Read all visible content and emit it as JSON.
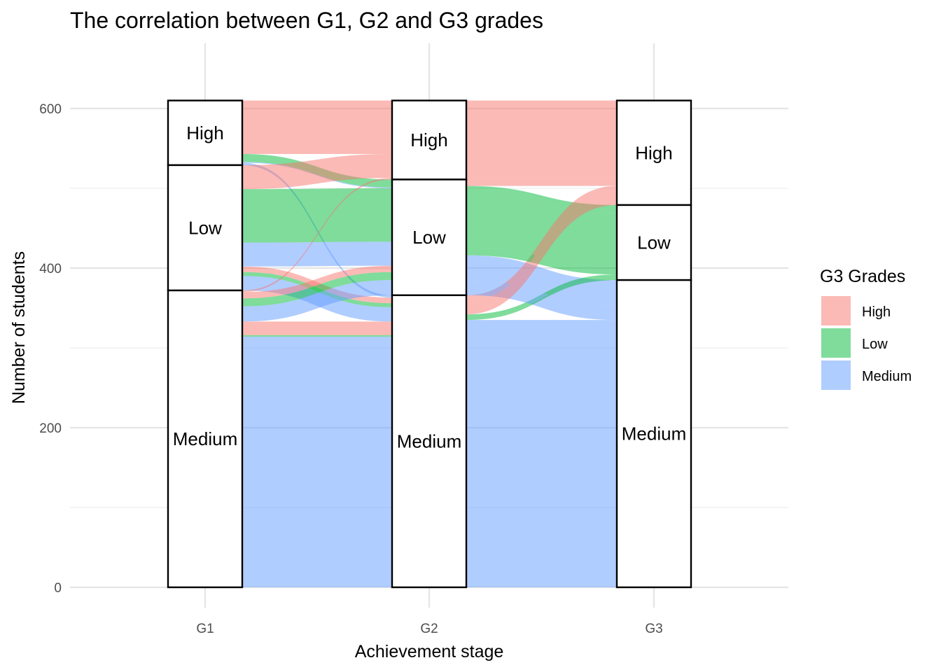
{
  "chart_data": {
    "type": "alluvial",
    "title": "The correlation between G1, G2 and G3 grades",
    "xlabel": "Achievement stage",
    "ylabel": "Number of students",
    "ylim": [
      0,
      650
    ],
    "y_ticks": [
      0,
      200,
      400,
      600
    ],
    "axes": [
      "G1",
      "G2",
      "G3"
    ],
    "strata_order": [
      "High",
      "Low",
      "Medium"
    ],
    "stratum_labels": {
      "High": "High",
      "Low": "Low",
      "Medium": "Medium"
    },
    "legend": {
      "title": "G3 Grades",
      "position": "right",
      "entries": [
        "High",
        "Low",
        "Medium"
      ]
    },
    "fill_colors": {
      "High": "#F8766D",
      "Low": "#00BA38",
      "Medium": "#619CFF"
    },
    "grid": true,
    "flows": [
      {
        "G1": "High",
        "G2": "High",
        "G3": "High",
        "count": 67
      },
      {
        "G1": "High",
        "G2": "Low",
        "G3": "Low",
        "count": 10
      },
      {
        "G1": "High",
        "G2": "Low",
        "G3": "Medium",
        "count": 1
      },
      {
        "G1": "High",
        "G2": "Medium",
        "G3": "Medium",
        "count": 3
      },
      {
        "G1": "Low",
        "G2": "High",
        "G3": "High",
        "count": 30
      },
      {
        "G1": "Low",
        "G2": "Low",
        "G3": "Low",
        "count": 67
      },
      {
        "G1": "Low",
        "G2": "Low",
        "G3": "Medium",
        "count": 30
      },
      {
        "G1": "Low",
        "G2": "Medium",
        "G3": "High",
        "count": 7
      },
      {
        "G1": "Low",
        "G2": "Medium",
        "G3": "Low",
        "count": 5
      },
      {
        "G1": "Low",
        "G2": "Medium",
        "G3": "Medium",
        "count": 18
      },
      {
        "G1": "Medium",
        "G2": "High",
        "G3": "High",
        "count": 2
      },
      {
        "G1": "Medium",
        "G2": "Low",
        "G3": "High",
        "count": 8
      },
      {
        "G1": "Medium",
        "G2": "Low",
        "G3": "Low",
        "count": 10
      },
      {
        "G1": "Medium",
        "G2": "Low",
        "G3": "Medium",
        "count": 19
      },
      {
        "G1": "Medium",
        "G2": "Medium",
        "G3": "High",
        "count": 17
      },
      {
        "G1": "Medium",
        "G2": "Medium",
        "G3": "Low",
        "count": 2
      },
      {
        "G1": "Medium",
        "G2": "Medium",
        "G3": "Medium",
        "count": 314
      }
    ]
  }
}
